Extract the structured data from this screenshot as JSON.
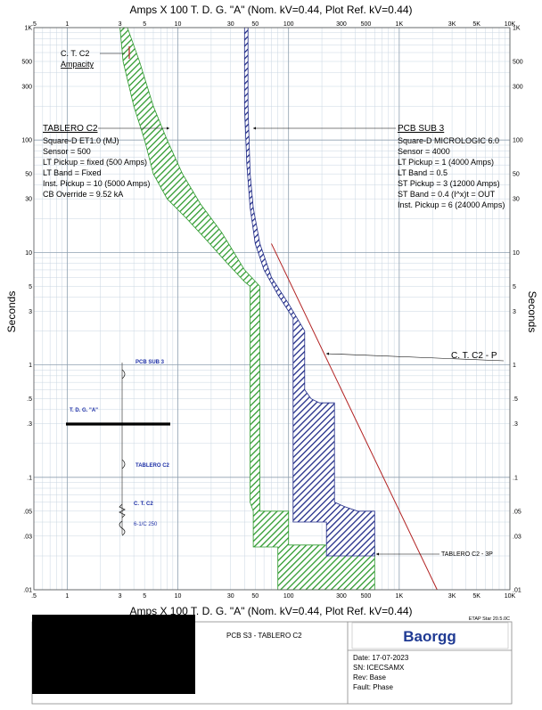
{
  "chart_data": {
    "type": "line",
    "title": "Amps  X  100   T. D. G. \"A\" (Nom. kV=0.44, Plot Ref. kV=0.44)",
    "bottom_title": "Amps  X  100   T. D. G. \"A\" (Nom. kV=0.44, Plot Ref. kV=0.44)",
    "ylabel": "Seconds",
    "xscale": "log",
    "yscale": "log",
    "xlim": [
      0.5,
      10000
    ],
    "ylim": [
      0.01,
      1000
    ],
    "grid": true,
    "x_ticks": [
      {
        "v": 0.5,
        "label": ".5"
      },
      {
        "v": 1,
        "label": "1"
      },
      {
        "v": 3,
        "label": "3"
      },
      {
        "v": 5,
        "label": "5"
      },
      {
        "v": 10,
        "label": "10"
      },
      {
        "v": 30,
        "label": "30"
      },
      {
        "v": 50,
        "label": "50"
      },
      {
        "v": 100,
        "label": "100"
      },
      {
        "v": 300,
        "label": "300"
      },
      {
        "v": 500,
        "label": "500"
      },
      {
        "v": 1000,
        "label": "1K"
      },
      {
        "v": 3000,
        "label": "3K"
      },
      {
        "v": 5000,
        "label": "5K"
      },
      {
        "v": 10000,
        "label": "10K"
      }
    ],
    "y_ticks": [
      {
        "v": 1000,
        "label": "1K"
      },
      {
        "v": 500,
        "label": "500"
      },
      {
        "v": 300,
        "label": "300"
      },
      {
        "v": 100,
        "label": "100"
      },
      {
        "v": 50,
        "label": "50"
      },
      {
        "v": 30,
        "label": "30"
      },
      {
        "v": 10,
        "label": "10"
      },
      {
        "v": 5,
        "label": "5"
      },
      {
        "v": 3,
        "label": "3"
      },
      {
        "v": 1,
        "label": "1"
      },
      {
        "v": 0.5,
        "label": ".5"
      },
      {
        "v": 0.3,
        "label": ".3"
      },
      {
        "v": 0.1,
        "label": ".1"
      },
      {
        "v": 0.05,
        "label": ".05"
      },
      {
        "v": 0.03,
        "label": ".03"
      },
      {
        "v": 0.01,
        "label": ".01"
      }
    ],
    "series": [
      {
        "name": "TABLERO C2",
        "color": "#2e9a2e",
        "band": [
          [
            3.5,
            1000
          ],
          [
            4.5,
            500
          ],
          [
            6,
            200
          ],
          [
            8,
            100
          ],
          [
            11,
            50
          ],
          [
            16,
            27
          ],
          [
            25,
            15
          ],
          [
            40,
            7
          ],
          [
            55,
            5
          ],
          [
            55,
            0.05
          ],
          [
            100,
            0.05
          ],
          [
            100,
            0.025
          ],
          [
            600,
            0.025
          ],
          [
            600,
            0.01
          ],
          [
            80,
            0.01
          ],
          [
            80,
            0.024
          ],
          [
            48,
            0.024
          ],
          [
            48,
            0.05
          ],
          [
            45,
            0.06
          ],
          [
            45,
            5
          ],
          [
            40,
            5.5
          ],
          [
            28,
            8
          ],
          [
            18,
            13
          ],
          [
            12,
            20
          ],
          [
            8,
            30
          ],
          [
            6,
            50
          ],
          [
            5,
            100
          ],
          [
            4,
            200
          ],
          [
            3.2,
            500
          ],
          [
            3,
            1000
          ]
        ]
      },
      {
        "name": "PCB SUB 3",
        "color": "#1f2a87",
        "band": [
          [
            43,
            1000
          ],
          [
            43,
            200
          ],
          [
            44,
            100
          ],
          [
            45,
            50
          ],
          [
            48,
            25
          ],
          [
            55,
            12
          ],
          [
            70,
            6
          ],
          [
            100,
            3.5
          ],
          [
            140,
            2
          ],
          [
            140,
            0.6
          ],
          [
            160,
            0.5
          ],
          [
            190,
            0.46
          ],
          [
            260,
            0.46
          ],
          [
            260,
            0.06
          ],
          [
            320,
            0.055
          ],
          [
            420,
            0.05
          ],
          [
            600,
            0.05
          ],
          [
            600,
            0.02
          ],
          [
            220,
            0.02
          ],
          [
            220,
            0.04
          ],
          [
            110,
            0.04
          ],
          [
            110,
            0.45
          ],
          [
            110,
            2.6
          ],
          [
            80,
            4.2
          ],
          [
            60,
            7
          ],
          [
            50,
            12
          ],
          [
            45,
            25
          ],
          [
            42,
            60
          ],
          [
            40,
            200
          ],
          [
            40,
            1000
          ]
        ]
      },
      {
        "name": "C. T. C2 - P",
        "color": "#b22222",
        "line": [
          [
            70,
            12
          ],
          [
            2200,
            0.01
          ]
        ]
      }
    ],
    "annotations": [
      {
        "text": "C. T. C2",
        "x": 1.1,
        "y": 590
      },
      {
        "text": "Ampacity",
        "x": 1.1,
        "y": 410
      },
      {
        "text": "C. T. C2 - P",
        "x": 1700,
        "y": 0.7
      },
      {
        "text": "TABLERO C2 - 3P",
        "x": 1100,
        "y": 0.021
      }
    ],
    "info_left": {
      "title": "TABLERO C2",
      "lines": [
        "Square-D  ET1.0 (MJ)",
        "Sensor = 500",
        "LT Pickup = fixed (500 Amps)",
        "LT Band = Fixed",
        "Inst. Pickup = 10 (5000 Amps)",
        "CB Override = 9.52 kA"
      ]
    },
    "info_right": {
      "title": "PCB SUB 3",
      "lines": [
        "Square-D  MICROLOGIC 6.0",
        "Sensor = 4000",
        "LT Pickup = 1 (4000 Amps)",
        "LT Band = 0.5",
        "ST Pickup = 3 (12000 Amps)",
        "ST Band = 0.4  (I^x)t = OUT",
        "Inst. Pickup = 6 (24000 Amps)"
      ]
    }
  },
  "one_line": {
    "pcb": "PCB SUB 3",
    "bus": "T. D. G. \"A\"",
    "tablero": "TABLERO C2",
    "ct": "C. T. C2",
    "cable": "6-1/C 250"
  },
  "title_block": {
    "version": "ETAP Star 20.5.0C",
    "project": "PCB S3 - TABLERO C2",
    "logo": "Baorgg",
    "date": "Date:  17-07-2023",
    "sn": "SN:    ICECSAMX",
    "rev": "Rev:   Base",
    "fault": "Fault:  Phase"
  }
}
